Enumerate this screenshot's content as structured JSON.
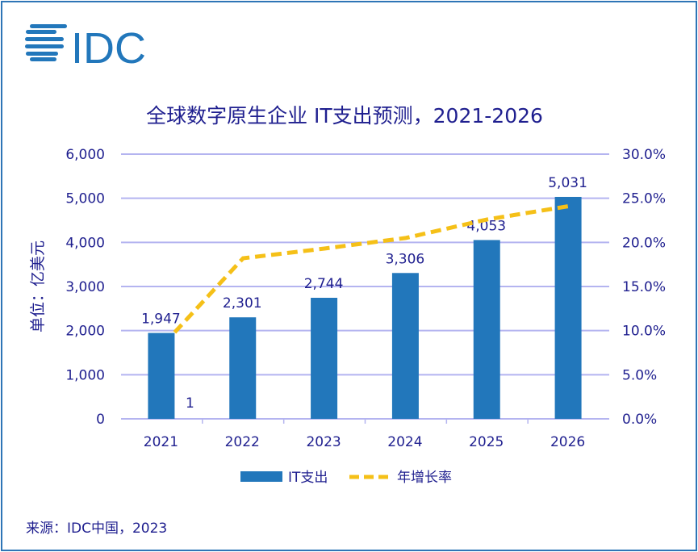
{
  "logo": {
    "text": "IDC",
    "color": "#2277bb"
  },
  "source": "来源：IDC中国，2023",
  "chart_data": {
    "type": "bar+line",
    "title": "全球数字原生企业 IT支出预测，2021-2026",
    "ylabel": "单位：亿美元",
    "categories": [
      "2021",
      "2022",
      "2023",
      "2024",
      "2025",
      "2026"
    ],
    "ylim": [
      0,
      6000
    ],
    "yticks": [
      "0",
      "1,000",
      "2,000",
      "3,000",
      "4,000",
      "5,000",
      "6,000"
    ],
    "y2lim": [
      0,
      30
    ],
    "y2ticks": [
      "0.0%",
      "5.0%",
      "10.0%",
      "15.0%",
      "20.0%",
      "25.0%",
      "30.0%"
    ],
    "grid": true,
    "legend": "bottom",
    "series": [
      {
        "name": "IT支出",
        "type": "bar",
        "color": "#2277bb",
        "values": [
          1947,
          2301,
          2744,
          3306,
          4053,
          5031
        ],
        "labels": [
          "1,947",
          "2,301",
          "2,744",
          "3,306",
          "4,053",
          "5,031"
        ]
      },
      {
        "name": "年增长率",
        "type": "line",
        "style": "dashed",
        "color": "#f5c018",
        "axis": "right",
        "values": [
          9.8,
          18.2,
          19.3,
          20.5,
          22.6,
          24.1
        ]
      }
    ],
    "annotations": [
      "1"
    ]
  }
}
